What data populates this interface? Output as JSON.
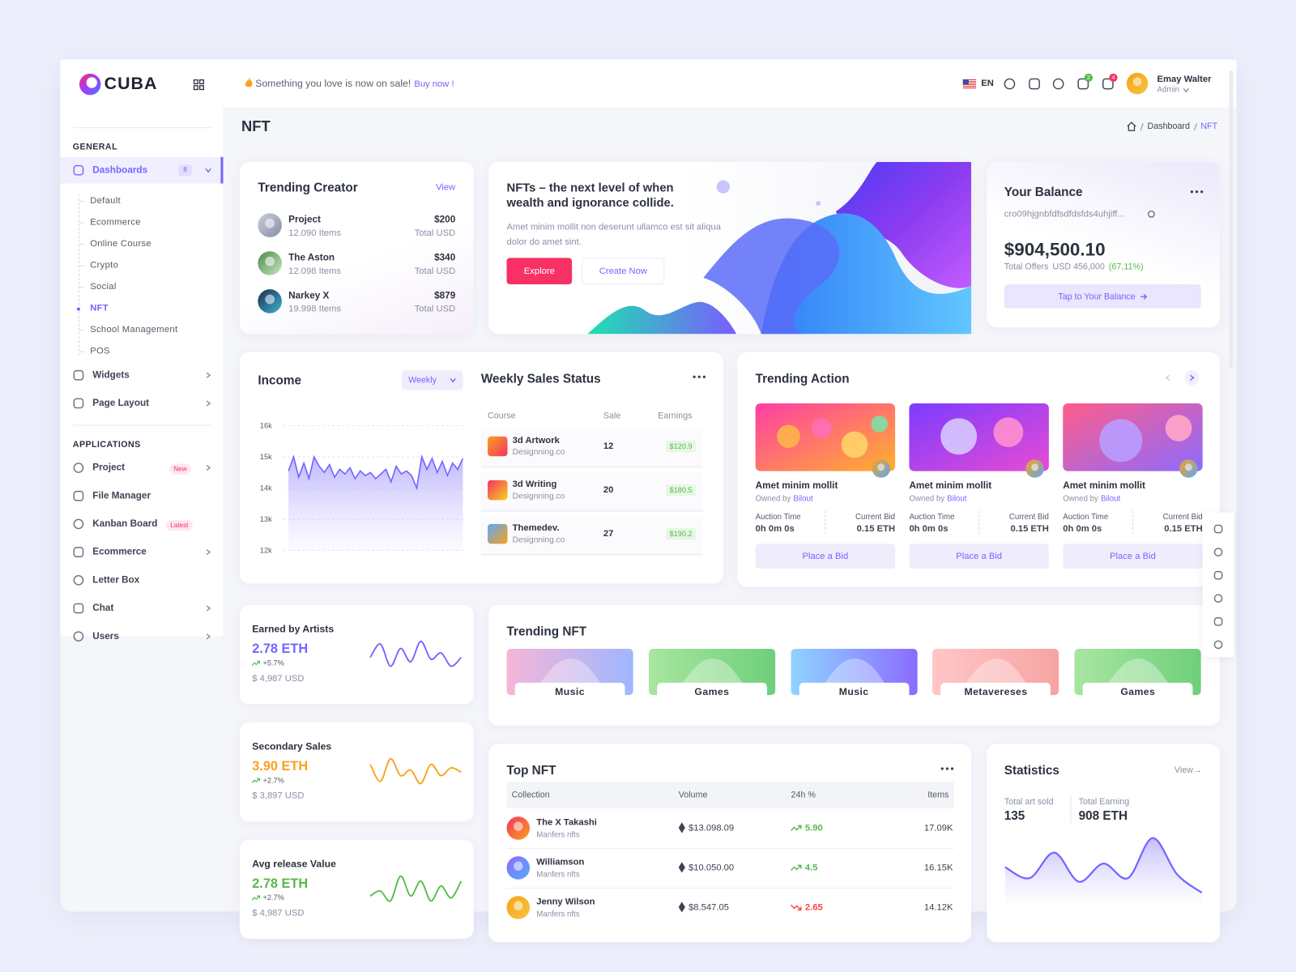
{
  "brand": "CUBA",
  "header": {
    "promo": "Something you love is now on sale!",
    "promo_link": "Buy now !",
    "language": "EN",
    "cart_count": 2,
    "notification_count": 4,
    "user_name": "Emay Walter",
    "user_role": "Admin"
  },
  "page": {
    "title": "NFT",
    "breadcrumb": [
      "Dashboard",
      "NFT"
    ]
  },
  "sidebar": {
    "sections": [
      {
        "title": "GENERAL",
        "items": [
          {
            "label": "Dashboards",
            "badge": 8,
            "sub": [
              "Default",
              "Ecommerce",
              "Online Course",
              "Crypto",
              "Social",
              "NFT",
              "School Management",
              "POS"
            ]
          },
          {
            "label": "Widgets"
          },
          {
            "label": "Page Layout"
          }
        ]
      },
      {
        "title": "APPLICATIONS",
        "items": [
          {
            "label": "Project",
            "tag": "New"
          },
          {
            "label": "File Manager"
          },
          {
            "label": "Kanban Board",
            "tag": "Latest"
          },
          {
            "label": "Ecommerce"
          },
          {
            "label": "Letter Box"
          },
          {
            "label": "Chat"
          },
          {
            "label": "Users"
          }
        ]
      }
    ]
  },
  "trending_creator": {
    "title": "Trending Creator",
    "link": "View",
    "rows": [
      {
        "name": "Project",
        "items": "12.090 Items",
        "price": "$200",
        "unit": "Total USD"
      },
      {
        "name": "The Aston",
        "items": "12.098 Items",
        "price": "$340",
        "unit": "Total USD"
      },
      {
        "name": "Narkey X",
        "items": "19.998 Items",
        "price": "$879",
        "unit": "Total USD"
      }
    ]
  },
  "hero": {
    "title": "NFTs – the next level of when wealth and ignorance collide.",
    "text": "Amet minim mollit non deserunt ullamco est sit aliqua dolor do amet sint.",
    "buttons": [
      "Explore",
      "Create Now"
    ]
  },
  "balance": {
    "title": "Your Balance",
    "address": "cro09hjgnbfdfsdfdsfds4uhjiff...",
    "amount": "$904,500.10",
    "offers_label": "Total Offers",
    "offers_value": "USD 456,000",
    "offers_change": "(67,11%)",
    "button": "Tap to Your Balance"
  },
  "income": {
    "title": "Income",
    "period": "Weekly",
    "ylim": [
      12000,
      16000
    ],
    "yticks": [
      {
        "value": 16000,
        "label": "16k"
      },
      {
        "value": 15000,
        "label": "15k"
      },
      {
        "value": 14000,
        "label": "14k"
      },
      {
        "value": 13000,
        "label": "13k"
      },
      {
        "value": 12000,
        "label": "12k"
      }
    ],
    "values": [
      14550,
      15000,
      14350,
      14800,
      14300,
      15000,
      14700,
      14500,
      14750,
      14350,
      14600,
      14450,
      14650,
      14300,
      14550,
      14400,
      14500,
      14300,
      14450,
      14600,
      14200,
      14700,
      14450,
      14550,
      14400,
      14000,
      15000,
      14600,
      14950,
      14500,
      14850,
      14400,
      14800,
      14600,
      14950
    ]
  },
  "weekly_sales": {
    "title": "Weekly Sales Status",
    "columns": [
      "Course",
      "Sale",
      "Earnings"
    ],
    "rows": [
      {
        "course": "3d Artwork",
        "by": "Designning.co",
        "sale": 12,
        "earnings": "$120.9"
      },
      {
        "course": "3d Writing",
        "by": "Designning.co",
        "sale": 20,
        "earnings": "$180.5"
      },
      {
        "course": "Themedev.",
        "by": "Designning.co",
        "sale": 27,
        "earnings": "$190.2"
      }
    ]
  },
  "trending_action": {
    "title": "Trending Action",
    "cards": [
      {
        "title": "Amet minim mollit",
        "owned": "Owned by",
        "owner": "Bilout",
        "time_label": "Auction Time",
        "time": "0h 0m 0s",
        "bid_label": "Current Bid",
        "bid": "0.15 ETH",
        "button": "Place a Bid"
      },
      {
        "title": "Amet minim mollit",
        "owned": "Owned by",
        "owner": "Bilout",
        "time_label": "Auction Time",
        "time": "0h 0m 0s",
        "bid_label": "Current Bid",
        "bid": "0.15 ETH",
        "button": "Place a Bid"
      },
      {
        "title": "Amet minim mollit",
        "owned": "Owned by",
        "owner": "Bilout",
        "time_label": "Auction Time",
        "time": "0h 0m 0s",
        "bid_label": "Current Bid",
        "bid": "0.15 ETH",
        "button": "Place a Bid"
      }
    ]
  },
  "stat_cards": [
    {
      "title": "Earned by Artists",
      "value": "2.78 ETH",
      "change": "+5.7%",
      "usd": "$ 4,987 USD",
      "color": "#7366ff",
      "spark": [
        40,
        55,
        30,
        50,
        35,
        58,
        38,
        45,
        30,
        40
      ]
    },
    {
      "title": "Secondary Sales",
      "value": "3.90 ETH",
      "change": "+2.7%",
      "usd": "$ 3,897 USD",
      "color": "#f8a21a",
      "spark": [
        45,
        30,
        50,
        35,
        40,
        28,
        45,
        35,
        42,
        38
      ]
    },
    {
      "title": "Avg release Value",
      "value": "2.78 ETH",
      "change": "+2.7%",
      "usd": "$ 4,987 USD",
      "color": "#54ba4a",
      "spark": [
        30,
        35,
        25,
        50,
        30,
        45,
        25,
        40,
        28,
        45
      ]
    }
  ],
  "trending_nft": {
    "title": "Trending NFT",
    "items": [
      "Music",
      "Games",
      "Music",
      "Metavereses",
      "Games"
    ]
  },
  "top_nft": {
    "title": "Top NFT",
    "columns": [
      "Collection",
      "Volume",
      "24h %",
      "Items"
    ],
    "rows": [
      {
        "name": "The X Takashi",
        "by": "Manfers nfts",
        "volume": "$13.098.09",
        "change": "5.90",
        "trend": "up",
        "items": "17.09K"
      },
      {
        "name": "Williamson",
        "by": "Manfers nfts",
        "volume": "$10.050.00",
        "change": "4.5",
        "trend": "up",
        "items": "16.15K"
      },
      {
        "name": "Jenny Wilson",
        "by": "Manfers nfts",
        "volume": "$8.547.05",
        "change": "2.65",
        "trend": "down",
        "items": "14.12K"
      }
    ]
  },
  "statistics": {
    "title": "Statistics",
    "link": "View→",
    "metrics": [
      {
        "label": "Total art sold",
        "value": 135
      },
      {
        "label": "Total Earning",
        "value": "908 ETH"
      }
    ],
    "values": [
      50,
      35,
      70,
      30,
      55,
      35,
      90,
      40,
      15
    ]
  }
}
